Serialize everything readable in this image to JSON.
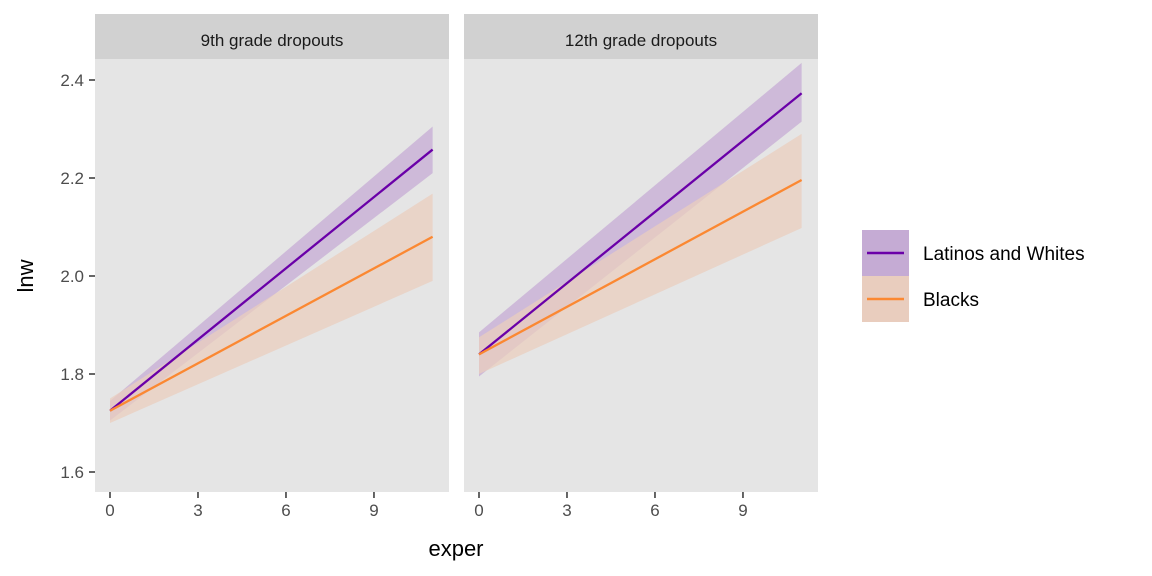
{
  "chart_data": {
    "type": "line",
    "xlabel": "exper",
    "ylabel": "lnw",
    "xlim": [
      -0.5,
      11.5
    ],
    "ylim": [
      1.57,
      2.44
    ],
    "x_ticks": [
      "0",
      "3",
      "6",
      "9"
    ],
    "x_tick_values": [
      0,
      3,
      6,
      9
    ],
    "y_ticks": [
      "1.6",
      "1.8",
      "2.0",
      "2.2",
      "2.4"
    ],
    "y_tick_values": [
      1.6,
      1.8,
      2.0,
      2.2,
      2.4
    ],
    "grid": false,
    "legend_position": "right",
    "legend": [
      "Latinos and Whites",
      "Blacks"
    ],
    "colors": {
      "Latinos and Whites": "#6a00a8",
      "Blacks": "#fb8832",
      "Latinos and Whites_fill": "#c5abd4",
      "Blacks_fill": "#e9cdbe",
      "panel": "#e5e5e5",
      "strip": "#d1d1d1"
    },
    "panels": [
      {
        "title": "9th grade dropouts",
        "series": [
          {
            "name": "Latinos and Whites",
            "x": [
              0,
              11
            ],
            "y": [
              1.725,
              2.258
            ],
            "lower": [
              1.705,
              2.21
            ],
            "upper": [
              1.745,
              2.305
            ]
          },
          {
            "name": "Blacks",
            "x": [
              0,
              11
            ],
            "y": [
              1.725,
              2.08
            ],
            "lower": [
              1.7,
              1.99
            ],
            "upper": [
              1.75,
              2.168
            ]
          }
        ]
      },
      {
        "title": "12th grade dropouts",
        "series": [
          {
            "name": "Latinos and Whites",
            "x": [
              0,
              11
            ],
            "y": [
              1.84,
              2.373
            ],
            "lower": [
              1.795,
              2.315
            ],
            "upper": [
              1.885,
              2.435
            ]
          },
          {
            "name": "Blacks",
            "x": [
              0,
              11
            ],
            "y": [
              1.84,
              2.196
            ],
            "lower": [
              1.8,
              2.098
            ],
            "upper": [
              1.875,
              2.29
            ]
          }
        ]
      }
    ]
  }
}
